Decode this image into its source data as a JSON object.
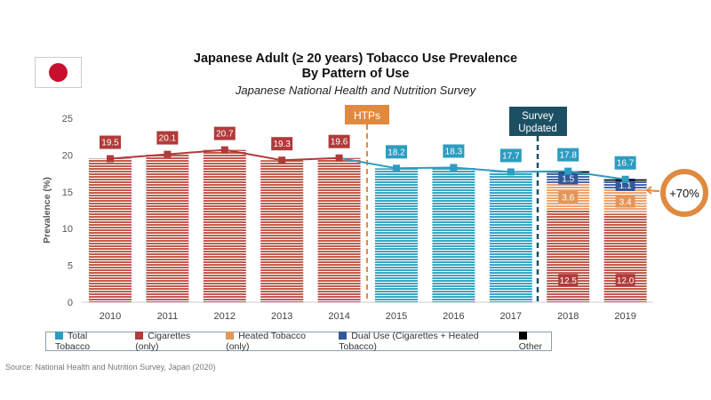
{
  "chart_data": {
    "type": "bar",
    "title": "Japanese Adult (≥ 20 years) Tobacco Use Prevalence",
    "title_line2": "By Pattern of Use",
    "subtitle": "Japanese National Health and Nutrition Survey",
    "ylabel": "Prevalence (%)",
    "ylim": [
      0,
      25
    ],
    "yticks": [
      0,
      5,
      10,
      15,
      20,
      25
    ],
    "grid": false,
    "categories": [
      "2010",
      "2011",
      "2012",
      "2013",
      "2014",
      "2015",
      "2016",
      "2017",
      "2018",
      "2019"
    ],
    "total_line": [
      19.5,
      20.1,
      20.7,
      19.3,
      19.6,
      18.2,
      18.3,
      17.7,
      17.8,
      16.7
    ],
    "stacked_2018_2019": {
      "cigarettes": [
        12.5,
        12.0
      ],
      "heated": [
        3.6,
        3.4
      ],
      "dual": [
        1.5,
        1.1
      ],
      "other": [
        0.2,
        0.2
      ]
    },
    "annotations": {
      "htps": "HTPs",
      "survey": "Survey Updated",
      "increase": "+70%"
    },
    "legend": [
      {
        "label": "Total Tobacco",
        "color": "#2e9cc0"
      },
      {
        "label": "Cigarettes (only)",
        "color": "#b23a3a"
      },
      {
        "label": "Heated Tobacco (only)",
        "color": "#e3965a"
      },
      {
        "label": "Dual Use (Cigarettes + Heated Tobacco)",
        "color": "#34579a"
      },
      {
        "label": "Other",
        "color": "#000000"
      }
    ],
    "legend_position": "bottom"
  },
  "source": "Source: National Health and Nutrition Survey, Japan (2020)"
}
